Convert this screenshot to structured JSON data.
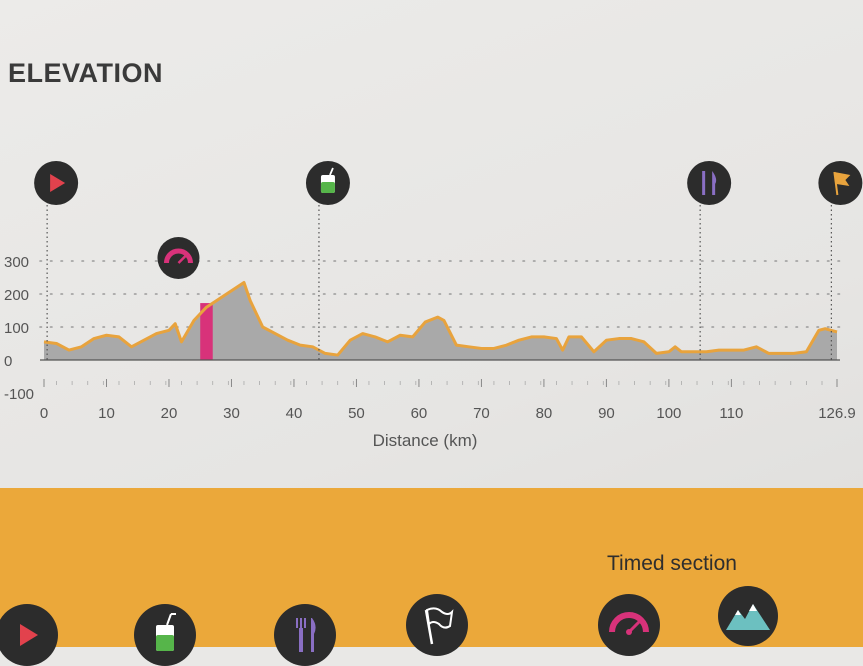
{
  "page": {
    "title": "ELEVATION"
  },
  "colors": {
    "profile_fill": "#a9a9a9",
    "profile_line": "#e8a33d",
    "timed_section": "#d8327a",
    "icon_bg": "#2c2c2c",
    "start_icon": "#e2424d",
    "drink_icon": "#56b54a",
    "food_icon": "#8a6fc4",
    "finish_icon": "#e8a33d",
    "band": "#eba83a"
  },
  "chart_data": {
    "type": "area",
    "xlabel": "Distance (km)",
    "ylabel": "",
    "xlim": [
      0,
      126.9
    ],
    "ylim": [
      -100,
      300
    ],
    "x_ticks": [
      0,
      10,
      20,
      30,
      40,
      50,
      60,
      70,
      80,
      90,
      100,
      110,
      126.9
    ],
    "x_tick_labels": [
      "0",
      "10",
      "20",
      "30",
      "40",
      "50",
      "60",
      "70",
      "80",
      "90",
      "100",
      "110",
      "126.9"
    ],
    "y_ticks": [
      -100,
      0,
      100,
      200,
      300
    ],
    "y_tick_labels": [
      "-100",
      "0",
      "100",
      "200",
      "300"
    ],
    "grid": "horizontal dotted",
    "series": [
      {
        "x": [
          0,
          2,
          4,
          6,
          8,
          10,
          12,
          14,
          16,
          18,
          20,
          21,
          22,
          24,
          26,
          28,
          30,
          32,
          33,
          35,
          37,
          39,
          41,
          43,
          45,
          47,
          49,
          51,
          53,
          55,
          57,
          59,
          61,
          63,
          64,
          66,
          68,
          70,
          72,
          74,
          76,
          78,
          80,
          82,
          83,
          84,
          86,
          88,
          90,
          92,
          94,
          96,
          98,
          100,
          101,
          102,
          104,
          106,
          108,
          110,
          112,
          114,
          116,
          118,
          120,
          122,
          124,
          125,
          126.9
        ],
        "y": [
          55,
          50,
          30,
          40,
          65,
          75,
          70,
          40,
          60,
          80,
          90,
          110,
          55,
          120,
          160,
          185,
          210,
          235,
          180,
          100,
          80,
          60,
          45,
          40,
          20,
          15,
          60,
          80,
          70,
          55,
          75,
          70,
          115,
          130,
          120,
          45,
          40,
          35,
          35,
          45,
          60,
          70,
          70,
          65,
          30,
          70,
          70,
          25,
          60,
          65,
          65,
          55,
          20,
          25,
          40,
          25,
          25,
          25,
          30,
          30,
          30,
          40,
          20,
          20,
          20,
          25,
          90,
          95,
          85
        ]
      }
    ],
    "timed_section": {
      "start_km": 25,
      "end_km": 27
    },
    "markers": [
      {
        "km": 0.5,
        "icon": "play-icon"
      },
      {
        "km": 44,
        "icon": "drink-icon"
      },
      {
        "km": 105,
        "icon": "food-icon"
      },
      {
        "km": 126,
        "icon": "flag-icon"
      }
    ],
    "timed_marker": {
      "km": 26,
      "icon": "speedometer-icon"
    }
  },
  "legend": {
    "timed_section_label": "Timed section",
    "icons": [
      "play-icon",
      "drink-icon",
      "food-icon",
      "flag-icon",
      "speedometer-icon",
      "mountain-icon"
    ]
  }
}
